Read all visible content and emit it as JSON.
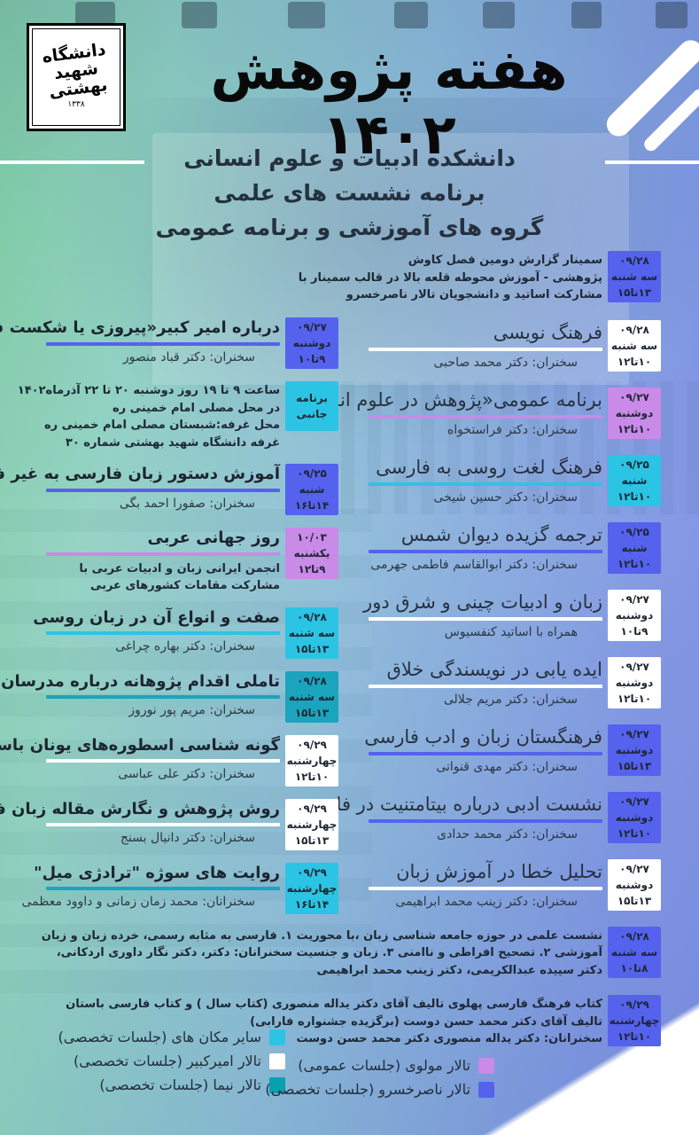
{
  "logo": {
    "university": "دانشگاه شهید بهشتی",
    "year": "۱۳۳۸"
  },
  "header": {
    "title": "هفته پژوهش ۱۴۰۲",
    "subtitle_lines": [
      "دانشکده ادبیات و علوم انسانی",
      "برنامه نشست های علمی",
      "گروه های آموزشی و برنامه عمومی"
    ]
  },
  "colors": {
    "blue": "#5562ee",
    "white": "#ffffff",
    "purple": "#c98ae8",
    "cyan": "#2cc4e4",
    "teal": "#1ba4bd",
    "nima": "#0a9fae"
  },
  "events_right": [
    {
      "badge": {
        "color": "blue",
        "lines": [
          "۰۹/۲۸",
          "سه شنبه",
          "۱۳تا۱۵"
        ]
      },
      "lines": [
        "سمینار گزارش دومین فصل کاوش",
        "پژوهشی - آموزش محوطه قلعه بالا در قالب سمینار با",
        "مشارکت اساتید و دانشجویان تالار ناصرخسرو"
      ]
    },
    {
      "badge": {
        "color": "white",
        "lines": [
          "۰۹/۲۸",
          "سه شنبه",
          "۱۰تا۱۲"
        ]
      },
      "title": "فرهنگ نویسی",
      "underline": "white",
      "speaker": "سخنران: دکتر محمد صاحبی"
    },
    {
      "badge": {
        "color": "purple",
        "lines": [
          "۰۹/۲۷",
          "دوشنبه",
          "۱۰تا۱۲"
        ]
      },
      "title": "برنامه عمومی«پژوهش در علوم انسانی»",
      "underline": "purple",
      "speaker": "سخنران:  دکتر فراستخواه"
    },
    {
      "badge": {
        "color": "cyan",
        "lines": [
          "۰۹/۲۵",
          "شنبه",
          "۱۰تا۱۲"
        ]
      },
      "title": "فرهنگ لغت روسی به فارسی",
      "underline": "cyan",
      "speaker": "سخنران: دکتر حسین شیخی"
    },
    {
      "badge": {
        "color": "blue",
        "lines": [
          "۰۹/۲۵",
          "شنبه",
          "۱۰تا۱۲"
        ]
      },
      "title": "ترجمه گزیده دیوان شمس",
      "underline": "blue",
      "speaker": "سخنران: دکتر ابوالقاسم فاطمی جهرمی"
    },
    {
      "badge": {
        "color": "white",
        "lines": [
          "۰۹/۲۷",
          "دوشنبه",
          "۹تا۱۰"
        ]
      },
      "title": "زبان و ادبیات چینی و شرق دور",
      "underline": "white",
      "speaker": "همراه با اساتید کنفسیوس"
    },
    {
      "badge": {
        "color": "white",
        "lines": [
          "۰۹/۲۷",
          "دوشنبه",
          "۱۰تا۱۲"
        ]
      },
      "title": "ایده یابی در نویسندگی خلاق",
      "underline": "white",
      "speaker": "سخنران: دکتر مریم جلالی"
    },
    {
      "badge": {
        "color": "blue",
        "lines": [
          "۰۹/۲۷",
          "دوشنبه",
          "۱۳تا۱۵"
        ]
      },
      "title": "فرهنگستان زبان و ادب فارسی",
      "underline": "blue",
      "speaker": "سخنران: دکتر مهدی قنواتی"
    },
    {
      "badge": {
        "color": "blue",
        "lines": [
          "۰۹/۲۷",
          "دوشنبه",
          "۱۰تا۱۲"
        ]
      },
      "title": "نشست ادبی درباره بیتامتنیت در فاوست",
      "underline": "blue",
      "speaker": "سخنران: دکتر محمد حدادی"
    },
    {
      "badge": {
        "color": "white",
        "lines": [
          "۰۹/۲۷",
          "دوشنبه",
          "۱۳تا۱۵"
        ]
      },
      "title": "تحلیل خطا در آموزش زبان",
      "underline": "white",
      "speaker": "سخنران: دکتر زینب محمد ابراهیمی"
    },
    {
      "badge": {
        "color": "blue",
        "lines": [
          "۰۹/۲۸",
          "سه شنبه",
          "۸تا۱۰"
        ]
      },
      "lines": [
        "نشست علمی در حوزه جامعه شناسی زبان ،با محوریت  ۱. فارسی به مثابه رسمی، خرده زبان و زبان",
        "آموزشی ۲. تصحیح افراطی و ناامنی  ۳. زبان و جنسیت سخنرانان: دکتر، دکتر نگار داوری اردکانی،",
        "دکتر سپیده عبدالکریمی، دکتر زینب محمد ابراهیمی"
      ]
    },
    {
      "badge": {
        "color": "blue",
        "lines": [
          "۰۹/۲۹",
          "چهارشنبه",
          "۱۰تا۱۲"
        ]
      },
      "lines": [
        "کتاب فرهنگ فارسی پهلوی تالیف آقای دکتر یداله منصوری (کتاب سال ) و کتاب فارسی باستان",
        "تالیف آقای دکتر محمد حسن دوست (برگزیده جشنواره فارابی)",
        "سخنرانان: دکتر یداله منصوری دکتر محمد حسن دوست"
      ]
    }
  ],
  "events_left": [
    {
      "badge": {
        "color": "blue",
        "lines": [
          "۰۹/۲۷",
          "دوشنبه",
          "۹تا۱۰"
        ]
      },
      "title": "درباره امیر کبیر«پیروزی یا شکست قاجاریه»",
      "underline": "blue",
      "speaker": "سخنران: دکتر قباد منصور"
    },
    {
      "badge": {
        "color": "cyan",
        "lines": [
          "برنامه",
          "جانبی"
        ]
      },
      "lines": [
        "ساعت ۹ تا ۱۹ روز دوشنبه ۲۰ تا ۲۲ آذرماه۱۴۰۲",
        "در محل مصلی امام خمینی ره",
        "محل غرفه:شبستان مصلی امام خمینی ره",
        "غرفه دانشگاه شهید بهشتی شماره ۳۰"
      ]
    },
    {
      "badge": {
        "color": "blue",
        "lines": [
          "۰۹/۲۵",
          "شنبه",
          "۱۴تا۱۶"
        ]
      },
      "title": "آموزش دستور زبان فارسی به غیر فارسی زبانان",
      "underline": "blue",
      "speaker": "سخنران: صفورا احمد بگی"
    },
    {
      "badge": {
        "color": "purple",
        "lines": [
          "۱۰/۰۳",
          "یکشنبه",
          "۹تا۱۲"
        ]
      },
      "title": "روز جهانی عربی",
      "underline": "purple",
      "lines": [
        "انجمن ایرانی زبان و ادبیات عربی با",
        "مشارکت مقامات کشورهای عربی"
      ]
    },
    {
      "badge": {
        "color": "cyan",
        "lines": [
          "۰۹/۲۸",
          "سه شنبه",
          "۱۳تا۱۵"
        ]
      },
      "title": "صفت و انواع آن در زبان روسی",
      "underline": "cyan",
      "speaker": "سخنران: دکتر بهاره چراغی"
    },
    {
      "badge": {
        "color": "teal",
        "lines": [
          "۰۹/۲۸",
          "سه شنبه",
          "۱۳تا۱۵"
        ]
      },
      "title": "تاملی اقدام پژوهانه درباره مدرسان آزفا",
      "underline": "teal",
      "speaker": "سخنران: مریم پور نوروز"
    },
    {
      "badge": {
        "color": "white",
        "lines": [
          "۰۹/۲۹",
          "چهارشنبه",
          "۱۰تا۱۲"
        ]
      },
      "title": "گونه شناسی اسطوره‌های یونان  باستان",
      "underline": "white",
      "speaker": "سخنران: دکتر علی عباسی"
    },
    {
      "badge": {
        "color": "white",
        "lines": [
          "۰۹/۲۹",
          "چهارشنبه",
          "۱۳تا۱۵"
        ]
      },
      "title": "روش پژوهش و نگارش مقاله زبان فرانسه",
      "underline": "white",
      "speaker": "سخنران: دکتر دانیال بسنج"
    },
    {
      "badge": {
        "color": "cyan",
        "lines": [
          "۰۹/۲۹",
          "چهارشنبه",
          "۱۴تا۱۶"
        ]
      },
      "title": "روایت های سوژه \"ترادژی میل\"",
      "underline": "teal",
      "speaker": "سخنرانان: محمد زمان زمانی و داوود معظمی"
    }
  ],
  "legend_left": [
    {
      "color": "cyan",
      "label": "سایر مکان های (جلسات تخصصی)"
    },
    {
      "color": "white",
      "label": "تالار امیرکبیر (جلسات تخصصی)"
    },
    {
      "color": "nima",
      "label": "تالار نیما (جلسات تخصصی)"
    }
  ],
  "legend_right": [
    {
      "color": "purple",
      "label": "تالار مولوی (جلسات عمومی)"
    },
    {
      "color": "blue",
      "label": "تالار ناصرخسرو (جلسات تخصصی)"
    }
  ]
}
